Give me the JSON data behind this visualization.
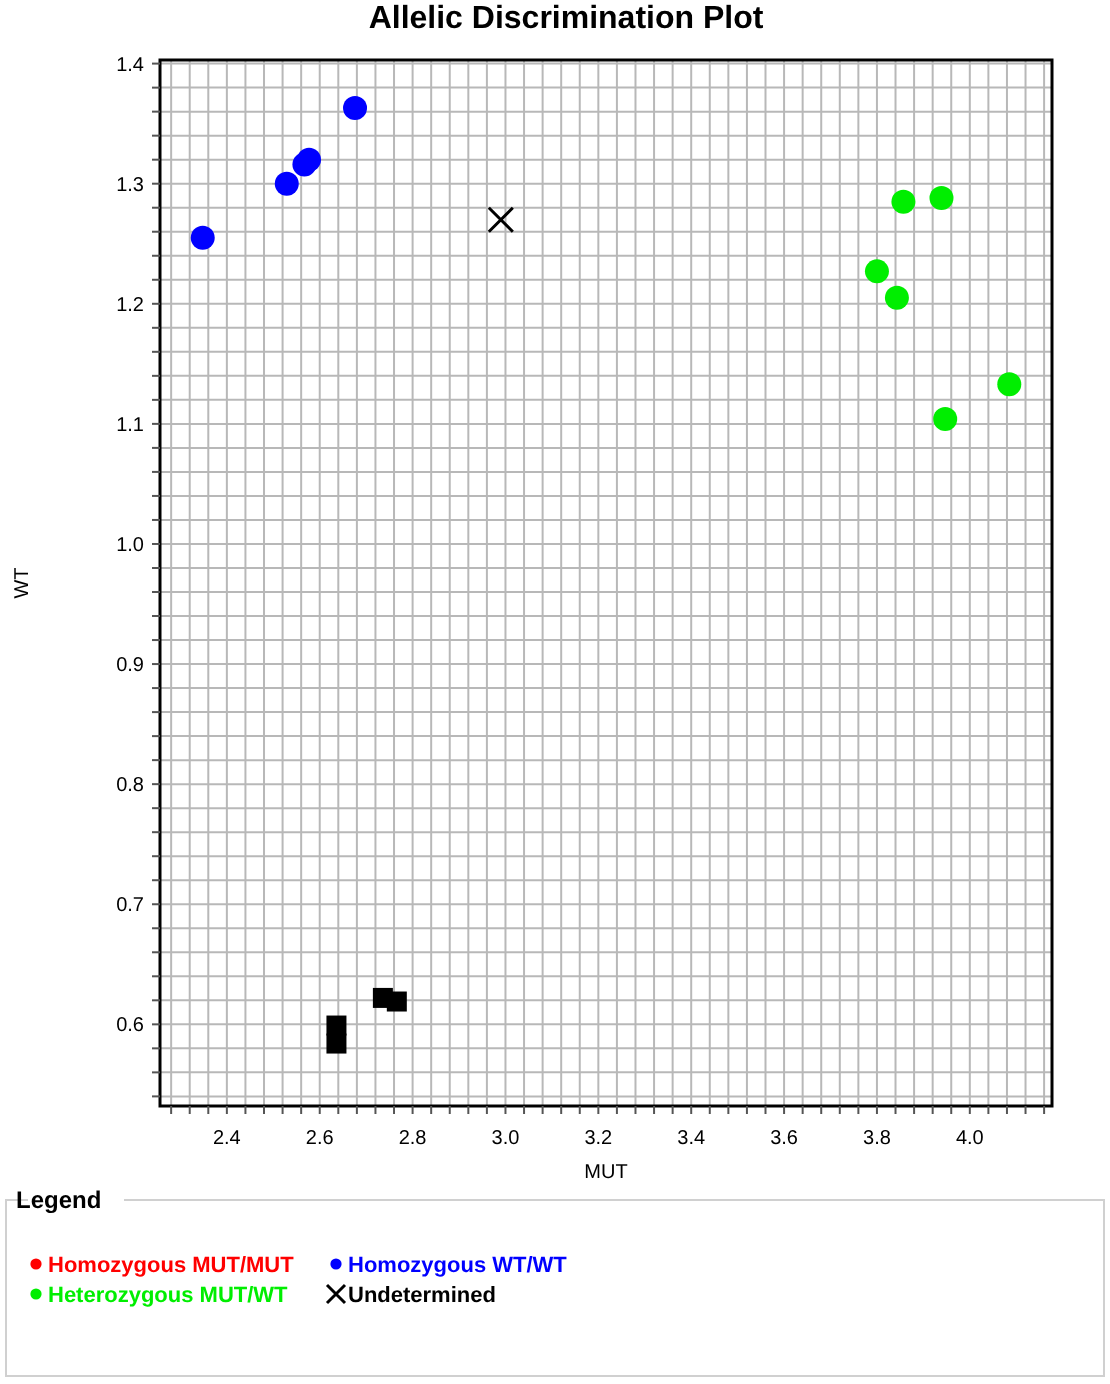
{
  "chart_data": {
    "type": "scatter",
    "title": "Allelic Discrimination Plot",
    "xlabel": "MUT",
    "ylabel": "WT",
    "legend_title": "Legend",
    "legend": "bottom",
    "grid": true,
    "xlim": [
      2.256,
      4.177
    ],
    "ylim": [
      0.532,
      1.403
    ],
    "xticks": [
      {
        "value": 2.28,
        "label": null
      },
      {
        "value": 2.32,
        "label": null
      },
      {
        "value": 2.36,
        "label": null
      },
      2.4,
      {
        "value": 2.44,
        "label": null
      },
      {
        "value": 2.48,
        "label": null
      },
      {
        "value": 2.52,
        "label": null
      },
      {
        "value": 2.56,
        "label": null
      },
      2.6,
      {
        "value": 2.64,
        "label": null
      },
      {
        "value": 2.68,
        "label": null
      },
      {
        "value": 2.72,
        "label": null
      },
      {
        "value": 2.76,
        "label": null
      },
      2.8,
      {
        "value": 2.84,
        "label": null
      },
      {
        "value": 2.88,
        "label": null
      },
      {
        "value": 2.92,
        "label": null
      },
      {
        "value": 2.96,
        "label": null
      },
      {
        "value": 3,
        "label": "3.0"
      },
      {
        "value": 3.04,
        "label": null
      },
      {
        "value": 3.08,
        "label": null
      },
      {
        "value": 3.12,
        "label": null
      },
      {
        "value": 3.16,
        "label": null
      },
      3.2,
      {
        "value": 3.24,
        "label": null
      },
      {
        "value": 3.28,
        "label": null
      },
      {
        "value": 3.32,
        "label": null
      },
      {
        "value": 3.36,
        "label": null
      },
      3.4,
      {
        "value": 3.44,
        "label": null
      },
      {
        "value": 3.48,
        "label": null
      },
      {
        "value": 3.52,
        "label": null
      },
      {
        "value": 3.56,
        "label": null
      },
      3.6,
      {
        "value": 3.64,
        "label": null
      },
      {
        "value": 3.68,
        "label": null
      },
      {
        "value": 3.72,
        "label": null
      },
      {
        "value": 3.76,
        "label": null
      },
      3.8,
      {
        "value": 3.84,
        "label": null
      },
      {
        "value": 3.88,
        "label": null
      },
      {
        "value": 3.92,
        "label": null
      },
      {
        "value": 3.96,
        "label": null
      },
      {
        "value": 4,
        "label": "4.0"
      },
      {
        "value": 4.04,
        "label": null
      },
      {
        "value": 4.08,
        "label": null
      },
      {
        "value": 4.12,
        "label": null
      },
      {
        "value": 4.16,
        "label": null
      }
    ],
    "yticks": [
      {
        "value": 0.54,
        "label": null
      },
      {
        "value": 0.56,
        "label": null
      },
      {
        "value": 0.58,
        "label": null
      },
      0.6,
      {
        "value": 0.62,
        "label": null
      },
      {
        "value": 0.64,
        "label": null
      },
      {
        "value": 0.66,
        "label": null
      },
      {
        "value": 0.68,
        "label": null
      },
      0.7,
      {
        "value": 0.72,
        "label": null
      },
      {
        "value": 0.74,
        "label": null
      },
      {
        "value": 0.76,
        "label": null
      },
      {
        "value": 0.78,
        "label": null
      },
      0.8,
      {
        "value": 0.82,
        "label": null
      },
      {
        "value": 0.84,
        "label": null
      },
      {
        "value": 0.86,
        "label": null
      },
      {
        "value": 0.88,
        "label": null
      },
      0.9,
      {
        "value": 0.92,
        "label": null
      },
      {
        "value": 0.94,
        "label": null
      },
      {
        "value": 0.96,
        "label": null
      },
      {
        "value": 0.98,
        "label": null
      },
      {
        "value": 1,
        "label": "1.0"
      },
      {
        "value": 1.02,
        "label": null
      },
      {
        "value": 1.04,
        "label": null
      },
      {
        "value": 1.06,
        "label": null
      },
      {
        "value": 1.08,
        "label": null
      },
      1.1,
      {
        "value": 1.12,
        "label": null
      },
      {
        "value": 1.14,
        "label": null
      },
      {
        "value": 1.16,
        "label": null
      },
      {
        "value": 1.18,
        "label": null
      },
      1.2,
      {
        "value": 1.22,
        "label": null
      },
      {
        "value": 1.24,
        "label": null
      },
      {
        "value": 1.26,
        "label": null
      },
      {
        "value": 1.28,
        "label": null
      },
      1.3,
      {
        "value": 1.32,
        "label": null
      },
      {
        "value": 1.34,
        "label": null
      },
      {
        "value": 1.36,
        "label": null
      },
      {
        "value": 1.38,
        "label": null
      },
      1.4
    ],
    "series": [
      {
        "name": "Homozygous MUT/MUT",
        "color": "#ff0000",
        "marker": "circle"
      },
      {
        "name": "Homozygous WT/WT",
        "color": "#0000ff",
        "marker": "circle",
        "x": [
          2.348,
          2.529,
          2.567,
          2.577,
          2.676
        ],
        "values": [
          1.255,
          1.3,
          1.316,
          1.32,
          1.363
        ]
      },
      {
        "name": "Heterozygous MUT/WT",
        "color": "#00ee00",
        "marker": "circle",
        "x": [
          3.857,
          3.939,
          3.8,
          3.843,
          4.085,
          3.947
        ],
        "values": [
          1.285,
          1.288,
          1.227,
          1.205,
          1.133,
          1.104
        ]
      },
      {
        "name": "Undetermined",
        "color": "#000000",
        "marker": "cross",
        "x": [
          2.99
        ],
        "values": [
          1.27
        ]
      },
      {
        "color": "#000000",
        "marker": "square",
        "x": [
          2.736,
          2.766,
          2.636,
          2.636
        ],
        "values": [
          0.622,
          0.619,
          0.599,
          0.584
        ]
      }
    ]
  }
}
